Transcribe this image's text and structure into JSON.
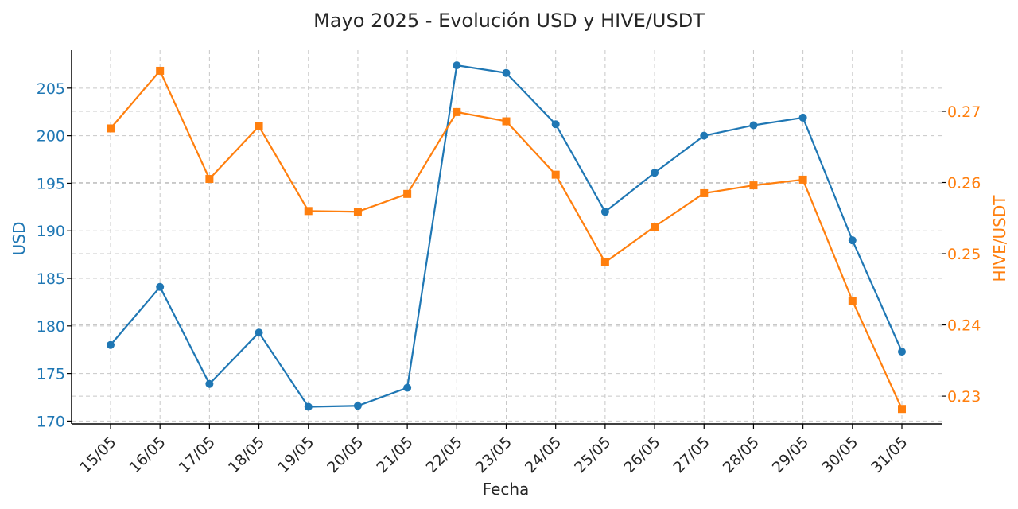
{
  "chart_data": {
    "type": "line",
    "title": "Mayo 2025 - Evolución USD y HIVE/USDT",
    "xlabel": "Fecha",
    "ylabel_left": "USD",
    "ylabel_right": "HIVE/USDT",
    "categories": [
      "15/05",
      "16/05",
      "17/05",
      "18/05",
      "19/05",
      "20/05",
      "21/05",
      "22/05",
      "23/05",
      "24/05",
      "25/05",
      "26/05",
      "27/05",
      "28/05",
      "29/05",
      "30/05",
      "31/05"
    ],
    "series": [
      {
        "axis": "left",
        "color": "#1f77b4",
        "marker": "circle",
        "values": [
          178.0,
          184.1,
          173.9,
          179.3,
          171.5,
          171.6,
          173.5,
          207.4,
          206.6,
          201.2,
          192.0,
          196.1,
          200.0,
          201.1,
          201.9,
          189.0,
          177.3
        ]
      },
      {
        "axis": "right",
        "color": "#ff7f0e",
        "marker": "square",
        "values": [
          0.2676,
          0.2757,
          0.2605,
          0.2679,
          0.256,
          0.2559,
          0.2584,
          0.2699,
          0.2686,
          0.2611,
          0.2488,
          0.2538,
          0.2585,
          0.2596,
          0.2604,
          0.2434,
          0.2282
        ]
      }
    ],
    "y_left": {
      "ticks": [
        "170",
        "175",
        "180",
        "185",
        "190",
        "195",
        "200",
        "205"
      ],
      "min": 169.7,
      "max": 209.0
    },
    "y_right": {
      "ticks": [
        "0.23",
        "0.24",
        "0.25",
        "0.26",
        "0.27"
      ],
      "min": 0.2261,
      "max": 0.2786
    },
    "grid": true,
    "legend": "none",
    "colors": {
      "left_axis": "#1f77b4",
      "right_axis": "#ff7f0e",
      "grid": "#c8c8c8",
      "text": "#262626"
    }
  }
}
